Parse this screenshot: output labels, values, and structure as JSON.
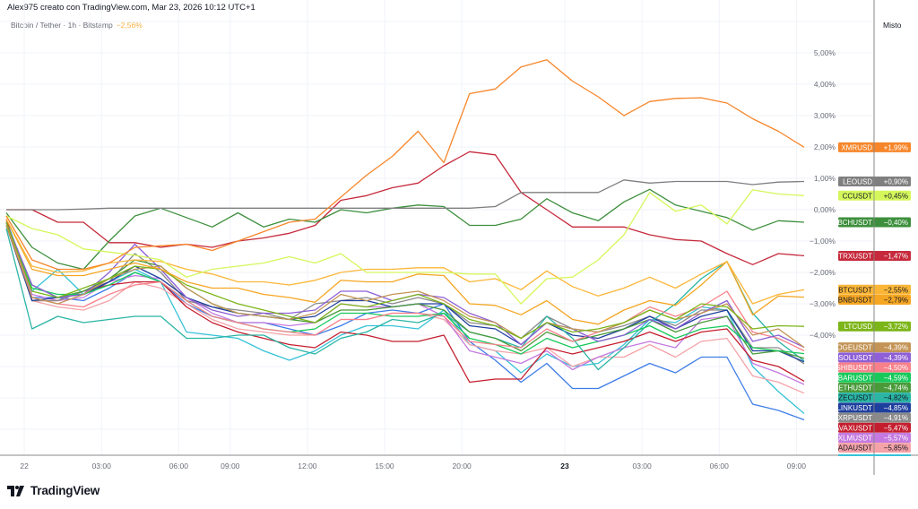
{
  "header": {
    "attribution": "Alex975 creato con TradingView.com, Mar 23, 2026 10:12 UTC+1",
    "symbol": "Bitcoin / Tether · 1h · Bitstamp",
    "change": "−2,56%",
    "change_color": "#f5b041",
    "scale_mode": "Misto"
  },
  "branding": {
    "logo_text": "TradingView",
    "logo_icon": "tradingview-logo-icon"
  },
  "chart_data": {
    "type": "line",
    "title": "",
    "ylabel": "",
    "xlabel": "",
    "y_unit": "percent change",
    "ylim": [
      -7.8,
      6.6
    ],
    "grid": true,
    "y_ticks": [
      "5,00%",
      "4,00%",
      "3,00%",
      "2,00%",
      "1,00%",
      "0,00%",
      "−1,00%",
      "−2,00%",
      "−3,00%",
      "−4,00%"
    ],
    "y_tick_values": [
      5,
      4,
      3,
      2,
      1,
      0,
      -1,
      -2,
      -3,
      -4
    ],
    "x_ticks": [
      {
        "label": "22",
        "bold": false,
        "point": 0.7
      },
      {
        "label": "03:00",
        "bold": false,
        "point": 3.7
      },
      {
        "label": "06:00",
        "bold": false,
        "point": 6.7
      },
      {
        "label": "09:00",
        "bold": false,
        "point": 8.7
      },
      {
        "label": "12:00",
        "bold": false,
        "point": 11.7
      },
      {
        "label": "15:00",
        "bold": false,
        "point": 14.7
      },
      {
        "label": "20:00",
        "bold": false,
        "point": 17.7
      },
      {
        "label": "23",
        "bold": true,
        "point": 21.7
      },
      {
        "label": "03:00",
        "bold": false,
        "point": 24.7
      },
      {
        "label": "06:00",
        "bold": false,
        "point": 27.7
      },
      {
        "label": "09:00",
        "bold": false,
        "point": 30.7
      }
    ],
    "series": [
      {
        "name": "XMRUSD",
        "last": "+1,99%",
        "color": "#f7862a",
        "text": "#ffffff",
        "values": [
          -0.2,
          -1.6,
          -1.9,
          -1.9,
          -1.7,
          -1.2,
          -1.15,
          -1.1,
          -1.3,
          -1.0,
          -0.7,
          -0.4,
          -0.3,
          0.4,
          1.1,
          1.7,
          2.5,
          1.5,
          3.7,
          3.85,
          4.55,
          4.78,
          4.1,
          3.6,
          3.0,
          3.45,
          3.55,
          3.57,
          3.4,
          2.9,
          2.5,
          1.99
        ]
      },
      {
        "name": "LEOUSD",
        "last": "+0,90%",
        "color": "#7f7f7f",
        "text": "#ffffff",
        "values": [
          0,
          0,
          0,
          0.02,
          0.05,
          0.05,
          0.05,
          0.05,
          0.05,
          0.05,
          0.05,
          0.05,
          0.05,
          0.05,
          0.05,
          0.05,
          0.05,
          0.05,
          0.05,
          0.1,
          0.55,
          0.55,
          0.55,
          0.55,
          0.95,
          0.85,
          0.9,
          0.9,
          0.9,
          0.8,
          0.88,
          0.9
        ]
      },
      {
        "name": "CCUSDT",
        "last": "+0,45%",
        "color": "#d5f75c",
        "text": "#131722",
        "values": [
          -0.2,
          -0.6,
          -0.8,
          -1.25,
          -1.35,
          -1.45,
          -1.6,
          -2.15,
          -1.9,
          -1.8,
          -1.7,
          -1.5,
          -1.7,
          -1.4,
          -2.0,
          -2.0,
          -2.0,
          -2.0,
          -2.05,
          -2.05,
          -3.0,
          -2.2,
          -2.15,
          -1.6,
          -0.8,
          0.55,
          -0.05,
          0.15,
          -0.45,
          0.63,
          0.5,
          0.45
        ]
      },
      {
        "name": "BCHUSDT",
        "last": "−0,40%",
        "color": "#3d8f3d",
        "text": "#ffffff",
        "values": [
          -0.1,
          -1.2,
          -1.7,
          -1.9,
          -1.0,
          -0.2,
          0.05,
          -0.25,
          -0.55,
          -0.1,
          -0.55,
          -0.3,
          -0.4,
          0,
          -0.1,
          0.05,
          0.15,
          0.1,
          -0.5,
          -0.5,
          -0.3,
          0.35,
          -0.1,
          -0.35,
          0.25,
          0.65,
          0.15,
          -0.05,
          -0.25,
          -0.65,
          -0.35,
          -0.4
        ]
      },
      {
        "name": "TRXUSDT",
        "last": "−1,47%",
        "color": "#c62a3c",
        "text": "#ffffff",
        "values": [
          0,
          0,
          -0.4,
          -0.4,
          -1.05,
          -1.05,
          -1.2,
          -1.1,
          -1.2,
          -1.0,
          -0.9,
          -0.75,
          -0.5,
          0.3,
          0.45,
          0.7,
          0.85,
          1.4,
          1.85,
          1.75,
          0.55,
          0,
          -0.55,
          -0.55,
          -0.55,
          -0.8,
          -0.95,
          -1.0,
          -1.4,
          -1.75,
          -1.4,
          -1.47
        ]
      },
      {
        "name": "BTCUSDT",
        "last": "−2,55%",
        "color": "#fbb637",
        "text": "#131722",
        "values": [
          -0.3,
          -1.8,
          -2.0,
          -1.95,
          -1.7,
          -1.6,
          -1.65,
          -1.9,
          -2.05,
          -2.3,
          -2.3,
          -2.4,
          -2.25,
          -2.0,
          -1.9,
          -1.9,
          -1.85,
          -1.85,
          -2.3,
          -2.2,
          -2.55,
          -1.95,
          -2.45,
          -2.75,
          -2.5,
          -2.15,
          -2.5,
          -2.05,
          -1.65,
          -3.0,
          -2.7,
          -2.55
        ]
      },
      {
        "name": "BNBUSDT",
        "last": "−2,79%",
        "color": "#f5a623",
        "text": "#131722",
        "values": [
          -0.3,
          -1.9,
          -2.1,
          -2.1,
          -1.9,
          -1.7,
          -1.9,
          -2.3,
          -2.5,
          -2.5,
          -2.7,
          -2.8,
          -2.95,
          -2.25,
          -2.3,
          -2.3,
          -2.05,
          -2.1,
          -3.0,
          -3.05,
          -3.35,
          -2.9,
          -3.5,
          -3.65,
          -3.2,
          -2.9,
          -3.05,
          -2.4,
          -1.65,
          -3.35,
          -2.75,
          -2.79
        ]
      },
      {
        "name": "LTCUSD",
        "last": "−3,72%",
        "color": "#7cb518",
        "text": "#ffffff",
        "values": [
          -0.4,
          -2.6,
          -2.8,
          -2.5,
          -2.2,
          -1.8,
          -1.9,
          -2.4,
          -2.7,
          -3.0,
          -3.2,
          -3.4,
          -3.6,
          -3.0,
          -3.1,
          -2.9,
          -2.7,
          -3.0,
          -3.5,
          -3.7,
          -4.1,
          -3.6,
          -3.9,
          -3.8,
          -3.6,
          -3.2,
          -3.5,
          -3.0,
          -3.1,
          -3.8,
          -3.7,
          -3.72
        ]
      },
      {
        "name": "DOGEUSDT",
        "last": "−4,39%",
        "color": "#c39455",
        "text": "#ffffff",
        "values": [
          -0.5,
          -2.8,
          -3.0,
          -2.7,
          -2.2,
          -1.9,
          -1.8,
          -2.5,
          -3.0,
          -3.3,
          -3.4,
          -3.5,
          -3.3,
          -2.7,
          -2.9,
          -2.7,
          -2.6,
          -2.9,
          -3.4,
          -3.6,
          -4.1,
          -3.6,
          -3.8,
          -3.9,
          -3.6,
          -3.2,
          -3.5,
          -3.3,
          -3.0,
          -4.0,
          -3.8,
          -4.39
        ]
      },
      {
        "name": "SOLUSDT",
        "last": "−4,39%",
        "color": "#8e5fd6",
        "text": "#ffffff",
        "values": [
          -0.4,
          -2.4,
          -2.8,
          -2.7,
          -2.0,
          -1.1,
          -1.9,
          -2.8,
          -3.2,
          -3.4,
          -3.3,
          -3.3,
          -3.2,
          -2.6,
          -2.6,
          -2.9,
          -2.7,
          -2.8,
          -3.3,
          -3.6,
          -4.3,
          -3.6,
          -3.8,
          -4.2,
          -4.0,
          -3.5,
          -3.8,
          -3.3,
          -2.9,
          -4.2,
          -4.0,
          -4.39
        ]
      },
      {
        "name": "SHIBUSDT",
        "last": "−4,50%",
        "color": "#f7808a",
        "text": "#ffffff",
        "values": [
          -0.4,
          -2.8,
          -3.0,
          -3.1,
          -2.7,
          -2.4,
          -2.3,
          -2.9,
          -3.4,
          -3.6,
          -3.8,
          -3.9,
          -4.0,
          -3.5,
          -3.5,
          -3.3,
          -3.3,
          -3.4,
          -4.2,
          -4.3,
          -4.4,
          -3.8,
          -4.2,
          -3.9,
          -3.6,
          -3.1,
          -3.4,
          -3.1,
          -2.6,
          -3.9,
          -4.1,
          -4.5
        ]
      },
      {
        "name": "HBARUSDT",
        "last": "−4,59%",
        "color": "#16c95a",
        "text": "#ffffff",
        "values": [
          -0.5,
          -2.5,
          -2.7,
          -2.7,
          -2.4,
          -2.0,
          -2.3,
          -2.9,
          -3.4,
          -3.6,
          -3.8,
          -3.9,
          -3.8,
          -3.3,
          -3.3,
          -3.4,
          -3.4,
          -3.3,
          -4.1,
          -4.3,
          -4.6,
          -4.1,
          -4.4,
          -4.2,
          -4.0,
          -3.7,
          -4.1,
          -3.8,
          -3.7,
          -4.4,
          -4.5,
          -4.59
        ]
      },
      {
        "name": "ETHUSDT",
        "last": "−4,74%",
        "color": "#4a9a3a",
        "text": "#ffffff",
        "values": [
          -0.4,
          -2.4,
          -2.8,
          -2.6,
          -2.2,
          -1.6,
          -1.8,
          -2.5,
          -3.0,
          -3.3,
          -3.4,
          -3.5,
          -3.6,
          -3.2,
          -3.2,
          -3.1,
          -3.0,
          -3.2,
          -3.9,
          -4.1,
          -4.5,
          -3.9,
          -4.2,
          -4.0,
          -3.8,
          -3.5,
          -3.9,
          -3.6,
          -3.4,
          -4.6,
          -4.5,
          -4.74
        ]
      },
      {
        "name": "ZECUSDT",
        "last": "−4,82%",
        "color": "#2ab5a5",
        "text": "#131722",
        "values": [
          -0.6,
          -3.8,
          -3.4,
          -3.6,
          -3.5,
          -3.4,
          -3.4,
          -4.1,
          -4.1,
          -4.0,
          -4.0,
          -4.4,
          -4.6,
          -4.1,
          -3.9,
          -3.5,
          -3.6,
          -3.3,
          -3.9,
          -4.1,
          -4.4,
          -3.4,
          -4.1,
          -5.1,
          -4.4,
          -3.6,
          -3.0,
          -2.2,
          -1.65,
          -3.3,
          -4.2,
          -4.82
        ]
      },
      {
        "name": "LINKUSDT",
        "last": "−4,85%",
        "color": "#1f3f9e",
        "text": "#ffffff",
        "values": [
          -0.5,
          -2.9,
          -2.8,
          -2.7,
          -2.3,
          -1.8,
          -2.2,
          -2.8,
          -3.1,
          -3.3,
          -3.4,
          -3.5,
          -3.4,
          -2.9,
          -2.9,
          -3.1,
          -3.0,
          -3.0,
          -3.7,
          -3.8,
          -4.3,
          -3.6,
          -4.0,
          -4.1,
          -3.8,
          -3.4,
          -3.8,
          -3.4,
          -3.2,
          -4.5,
          -4.5,
          -4.85
        ]
      },
      {
        "name": "XRPUSDT",
        "last": "−4,91%",
        "color": "#8a8a8a",
        "text": "#ffffff",
        "values": [
          -0.4,
          -2.9,
          -2.9,
          -2.6,
          -2.3,
          -1.4,
          -2.0,
          -2.9,
          -3.1,
          -3.2,
          -3.3,
          -3.5,
          -3.0,
          -2.9,
          -2.8,
          -3.0,
          -2.8,
          -3.0,
          -3.6,
          -3.7,
          -4.1,
          -3.4,
          -3.8,
          -3.9,
          -3.7,
          -3.4,
          -3.7,
          -3.2,
          -3.2,
          -4.4,
          -4.4,
          -4.91
        ]
      },
      {
        "name": "AVAXUSDT",
        "last": "−5,47%",
        "color": "#c41e2e",
        "text": "#ffffff",
        "values": [
          -0.3,
          -2.9,
          -2.9,
          -2.6,
          -2.4,
          -2.3,
          -2.3,
          -3.1,
          -3.6,
          -3.9,
          -4.1,
          -4.3,
          -4.4,
          -3.9,
          -4.0,
          -4.2,
          -4.2,
          -4.0,
          -5.5,
          -5.4,
          -5.4,
          -4.4,
          -4.6,
          -4.4,
          -4.2,
          -3.9,
          -4.2,
          -3.9,
          -3.8,
          -4.8,
          -5.0,
          -5.47
        ]
      },
      {
        "name": "XLMUSDT",
        "last": "−5,57%",
        "color": "#c47ae0",
        "text": "#ffffff",
        "values": [
          -0.4,
          -2.7,
          -2.9,
          -2.8,
          -2.3,
          -2.1,
          -2.2,
          -2.8,
          -3.3,
          -3.6,
          -3.6,
          -3.7,
          -3.6,
          -3.0,
          -3.1,
          -3.1,
          -3.0,
          -3.4,
          -4.5,
          -4.7,
          -4.9,
          -4.5,
          -5.1,
          -4.7,
          -4.4,
          -4.2,
          -4.4,
          -3.5,
          -3.4,
          -4.9,
          -5.2,
          -5.57
        ]
      },
      {
        "name": "ADAUSDT",
        "last": "−5,85%",
        "color": "#f4a3a8",
        "text": "#131722",
        "values": [
          -0.3,
          -2.9,
          -3.1,
          -3.2,
          -2.9,
          -2.3,
          -2.5,
          -3.0,
          -3.5,
          -3.8,
          -3.9,
          -4.0,
          -4.0,
          -3.5,
          -3.5,
          -3.3,
          -3.3,
          -3.5,
          -4.3,
          -4.5,
          -4.6,
          -4.4,
          -5.0,
          -4.7,
          -4.7,
          -4.3,
          -4.7,
          -4.2,
          -4.1,
          -5.3,
          -5.5,
          -5.85
        ]
      },
      {
        "name": "",
        "last": "",
        "color": "#3d7de8",
        "text": "#ffffff",
        "values": [
          -0.4,
          -2.8,
          -2.8,
          -2.9,
          -2.5,
          -2.0,
          -2.3,
          -3.0,
          -3.4,
          -3.6,
          -3.6,
          -3.8,
          -4.0,
          -3.7,
          -3.3,
          -3.2,
          -3.3,
          -3.0,
          -4.2,
          -4.8,
          -5.5,
          -4.9,
          -5.7,
          -5.7,
          -5.3,
          -4.9,
          -5.2,
          -4.7,
          -4.7,
          -6.2,
          -6.4,
          -6.7
        ]
      },
      {
        "name": "",
        "last": "",
        "color": "#36c2d8",
        "text": "#ffffff",
        "values": [
          -0.3,
          -2.6,
          -1.9,
          -2.7,
          -2.3,
          -1.9,
          -2.3,
          -3.9,
          -4.0,
          -4.1,
          -4.5,
          -4.8,
          -4.5,
          -4.0,
          -3.7,
          -3.7,
          -3.8,
          -3.2,
          -4.3,
          -4.5,
          -5.2,
          -4.6,
          -5.0,
          -4.9,
          -4.3,
          -3.5,
          -3.6,
          -3.1,
          -3.2,
          -5.0,
          -5.8,
          -6.5
        ]
      }
    ]
  }
}
